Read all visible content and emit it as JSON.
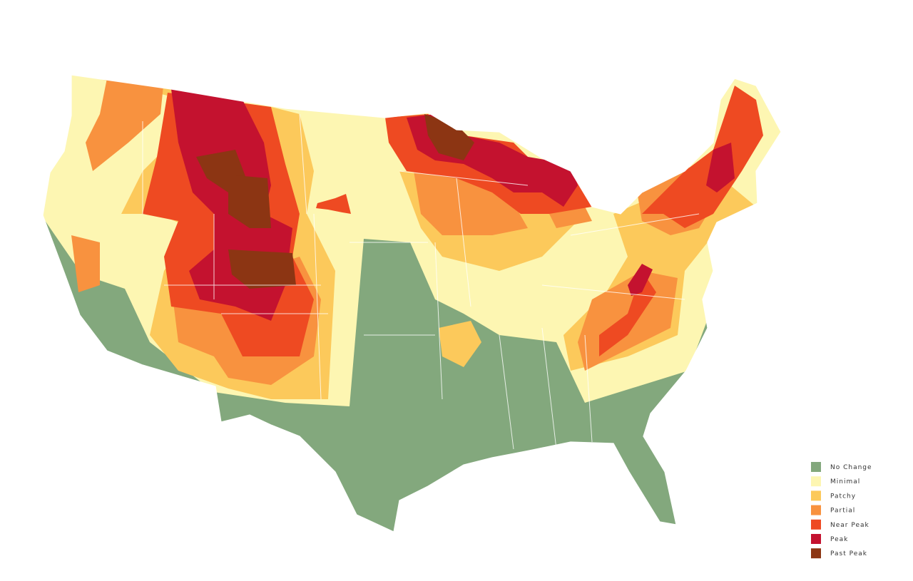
{
  "legend": {
    "items": [
      {
        "label": "No Change",
        "color": "#83a87d"
      },
      {
        "label": "Minimal",
        "color": "#fdf6b2"
      },
      {
        "label": "Patchy",
        "color": "#fcc95b"
      },
      {
        "label": "Partial",
        "color": "#f8923f"
      },
      {
        "label": "Near Peak",
        "color": "#ee4a22"
      },
      {
        "label": "Peak",
        "color": "#c4122f"
      },
      {
        "label": "Past Peak",
        "color": "#8c3513"
      }
    ]
  }
}
